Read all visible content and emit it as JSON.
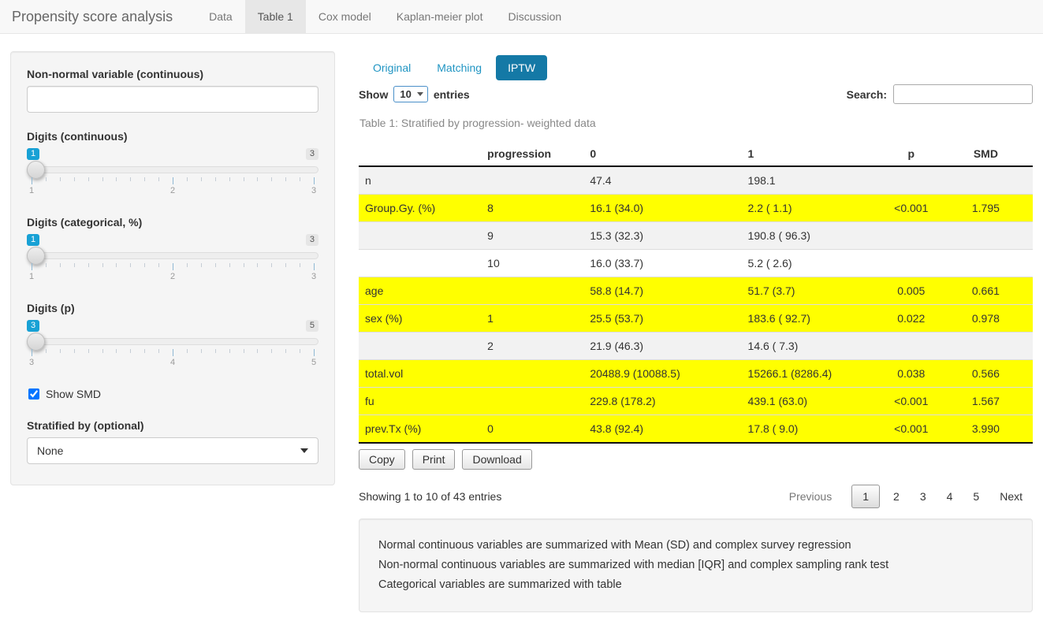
{
  "navbar": {
    "brand": "Propensity score analysis",
    "tabs": [
      {
        "label": "Data",
        "active": false
      },
      {
        "label": "Table 1",
        "active": true
      },
      {
        "label": "Cox model",
        "active": false
      },
      {
        "label": "Kaplan-meier plot",
        "active": false
      },
      {
        "label": "Discussion",
        "active": false
      }
    ]
  },
  "sidebar": {
    "nonnormal_label": "Non-normal variable (continuous)",
    "nonnormal_value": "",
    "sliders": [
      {
        "label": "Digits (continuous)",
        "value": "1",
        "max": "3",
        "ticks": [
          "1",
          "2",
          "3"
        ]
      },
      {
        "label": "Digits (categorical, %)",
        "value": "1",
        "max": "3",
        "ticks": [
          "1",
          "2",
          "3"
        ]
      },
      {
        "label": "Digits (p)",
        "value": "3",
        "max": "5",
        "ticks": [
          "3",
          "4",
          "5"
        ]
      }
    ],
    "show_smd_label": "Show SMD",
    "show_smd_checked": true,
    "stratified_label": "Stratified by (optional)",
    "stratified_value": "None"
  },
  "main": {
    "pills": [
      {
        "label": "Original",
        "active": false
      },
      {
        "label": "Matching",
        "active": false
      },
      {
        "label": "IPTW",
        "active": true
      }
    ],
    "length_control": {
      "prefix": "Show",
      "value": "10",
      "suffix": "entries"
    },
    "search_label": "Search:",
    "search_value": "",
    "caption": "Table 1: Stratified by progression- weighted data",
    "table": {
      "headers": [
        "",
        "progression",
        "0",
        "1",
        "p",
        "SMD"
      ],
      "rows": [
        {
          "cells": [
            "n",
            "",
            "47.4",
            "198.1",
            "",
            ""
          ],
          "highlight": false,
          "stripe": true
        },
        {
          "cells": [
            "Group.Gy. (%)",
            "8",
            "16.1 (34.0)",
            "2.2 ( 1.1)",
            "<0.001",
            "1.795"
          ],
          "highlight": true,
          "stripe": false
        },
        {
          "cells": [
            "",
            "9",
            "15.3 (32.3)",
            "190.8 ( 96.3)",
            "",
            ""
          ],
          "highlight": false,
          "stripe": true
        },
        {
          "cells": [
            "",
            "10",
            "16.0 (33.7)",
            "5.2 ( 2.6)",
            "",
            ""
          ],
          "highlight": false,
          "stripe": false
        },
        {
          "cells": [
            "age",
            "",
            "58.8 (14.7)",
            "51.7 (3.7)",
            "0.005",
            "0.661"
          ],
          "highlight": true,
          "stripe": false
        },
        {
          "cells": [
            "sex (%)",
            "1",
            "25.5 (53.7)",
            "183.6 ( 92.7)",
            "0.022",
            "0.978"
          ],
          "highlight": true,
          "stripe": false
        },
        {
          "cells": [
            "",
            "2",
            "21.9 (46.3)",
            "14.6 ( 7.3)",
            "",
            ""
          ],
          "highlight": false,
          "stripe": true
        },
        {
          "cells": [
            "total.vol",
            "",
            "20488.9 (10088.5)",
            "15266.1 (8286.4)",
            "0.038",
            "0.566"
          ],
          "highlight": true,
          "stripe": false
        },
        {
          "cells": [
            "fu",
            "",
            "229.8 (178.2)",
            "439.1 (63.0)",
            "<0.001",
            "1.567"
          ],
          "highlight": true,
          "stripe": false
        },
        {
          "cells": [
            "prev.Tx (%)",
            "0",
            "43.8 (92.4)",
            "17.8 ( 9.0)",
            "<0.001",
            "3.990"
          ],
          "highlight": true,
          "stripe": false
        }
      ]
    },
    "buttons": [
      "Copy",
      "Print",
      "Download"
    ],
    "info": "Showing 1 to 10 of 43 entries",
    "pagination": {
      "previous": "Previous",
      "pages": [
        "1",
        "2",
        "3",
        "4",
        "5"
      ],
      "current": "1",
      "next": "Next"
    },
    "notes": [
      "Normal continuous variables are summarized with Mean (SD) and complex survey regression",
      "Non-normal continuous variables are summarized with median [IQR] and complex sampling rank test",
      "Categorical variables are summarized with table"
    ]
  },
  "colors": {
    "active_pill_blue": "#1479a6",
    "link_blue": "#2095c3",
    "slider_badge_blue": "#18a1d5",
    "highlight_yellow": "#ffff00",
    "navbar_gray": "#f8f8f8",
    "well_gray": "#f5f5f5"
  }
}
